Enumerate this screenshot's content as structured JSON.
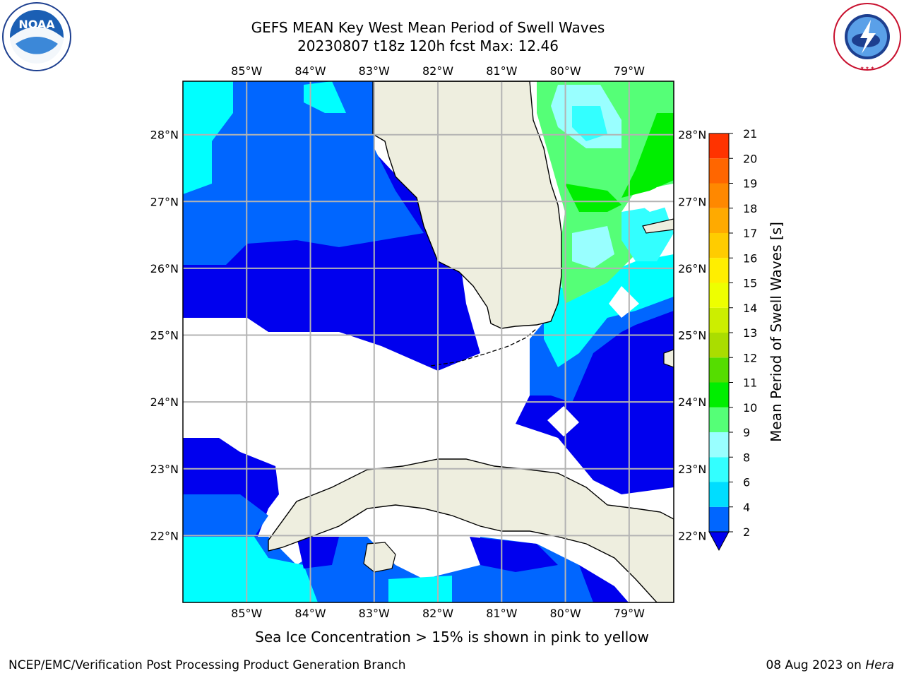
{
  "header": {
    "title": "GEFS MEAN Key West Mean Period of Swell Waves",
    "subtitle": "20230807 t18z 120h fcst   Max: 12.46"
  },
  "logos": {
    "left": {
      "name": "noaa-logo",
      "text": "NOAA"
    },
    "right": {
      "name": "nws-logo",
      "text": "NATIONAL WEATHER SERVICE"
    }
  },
  "map": {
    "lon_labels": [
      "85°W",
      "84°W",
      "83°W",
      "82°W",
      "81°W",
      "80°W",
      "79°W"
    ],
    "lat_labels": [
      "28°N",
      "27°N",
      "26°N",
      "25°N",
      "24°N",
      "23°N",
      "22°N"
    ],
    "lon_range": [
      -86.0,
      -78.3
    ],
    "lat_range": [
      21.0,
      28.8
    ],
    "land_color": "#eeeedf",
    "grid": true
  },
  "colorbar": {
    "label": "Mean Period of Swell Waves [s]",
    "ticks": [
      "2",
      "4",
      "6",
      "8",
      "9",
      "10",
      "11",
      "12",
      "13",
      "14",
      "15",
      "16",
      "17",
      "18",
      "19",
      "20",
      "21"
    ],
    "colors": [
      "#0066ff",
      "#00ddff",
      "#33ffff",
      "#99ffff",
      "#55ff77",
      "#00ee00",
      "#55dd00",
      "#aadd00",
      "#ccee00",
      "#eeff00",
      "#ffee00",
      "#ffcc00",
      "#ffaa00",
      "#ff8800",
      "#ff6600",
      "#ff3300"
    ],
    "extend_color": "#0000ee"
  },
  "note": "Sea Ice Concentration > 15% is shown in pink to yellow",
  "footer": {
    "left": "NCEP/EMC/Verification Post Processing Product Generation Branch",
    "right_prefix": "08 Aug 2023 on ",
    "right_host": "Hera"
  }
}
